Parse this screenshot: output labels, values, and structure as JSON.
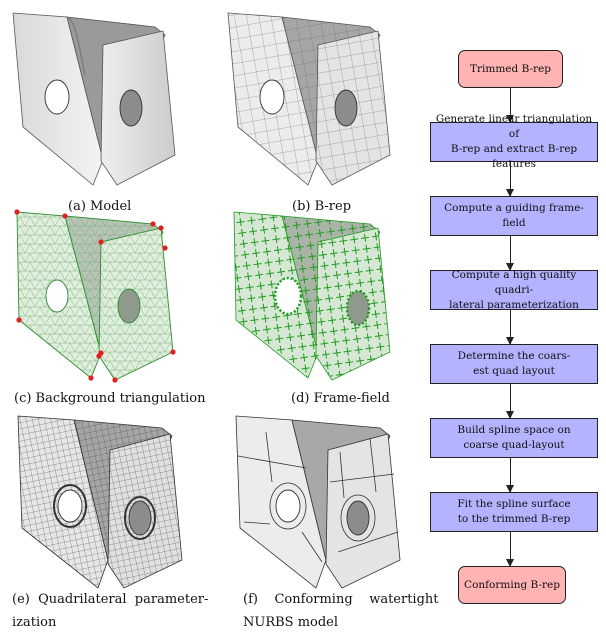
{
  "panels": [
    {
      "id": "a",
      "caption": "(a) Model"
    },
    {
      "id": "b",
      "caption": "(b) B-rep"
    },
    {
      "id": "c",
      "caption": "(c) Background triangulation"
    },
    {
      "id": "d",
      "caption": "(d) Frame-field"
    },
    {
      "id": "e",
      "caption_line1": "(e)  Quadrilateral  parameter-",
      "caption_line2": "ization"
    },
    {
      "id": "f",
      "caption_line1": "(f)    Conforming    watertight",
      "caption_line2": "NURBS model"
    }
  ],
  "flowchart": {
    "start": "Trimmed B-rep",
    "steps": [
      {
        "line1": "Generate linear triangulation of",
        "line2": "B-rep and extract B-rep features"
      },
      {
        "line1": "Compute a guiding frame-field",
        "line2": ""
      },
      {
        "line1": "Compute a high quality quadri-",
        "line2": "lateral parameterization"
      },
      {
        "line1": "Determine the coars-",
        "line2": "est quad layout"
      },
      {
        "line1": "Build spline space on",
        "line2": "coarse quad-layout"
      },
      {
        "line1": "Fit the spline surface",
        "line2": "to the trimmed B-rep"
      }
    ],
    "end": "Conforming B-rep",
    "colors": {
      "terminal": "#ffb3b3",
      "step": "#b3b3ff"
    }
  }
}
